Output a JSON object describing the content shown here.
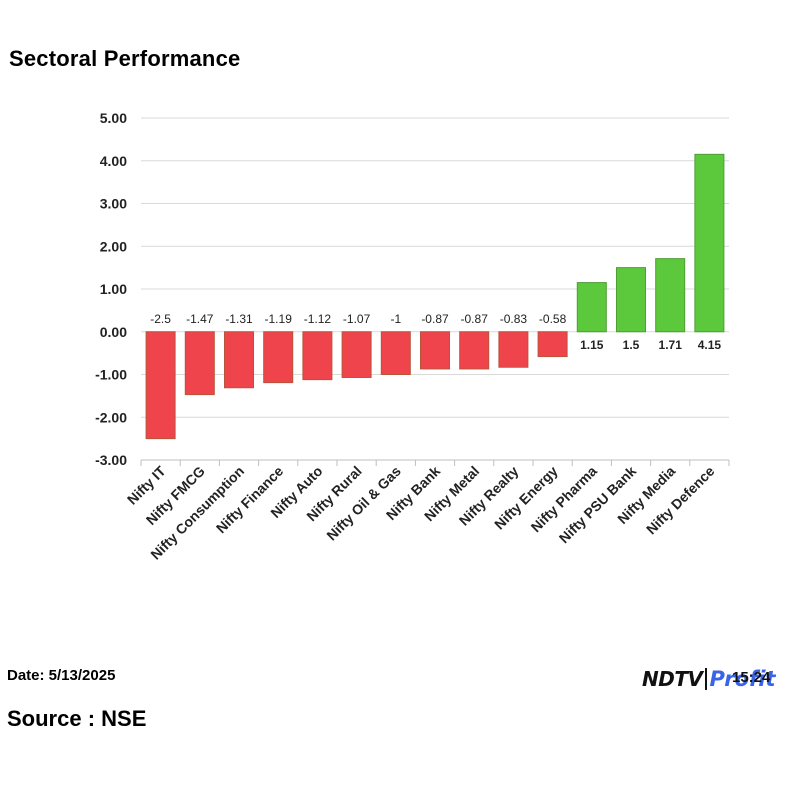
{
  "title": "Sectoral Performance",
  "footer": {
    "date": "Date: 5/13/2025",
    "source": "Source : NSE",
    "logo_ndtv": "NDTV",
    "logo_profit": "Profit",
    "time": "15:24"
  },
  "colors": {
    "negative": "#f0444c",
    "negative_edge": "#b8553a",
    "positive": "#5cc93c",
    "positive_edge": "#4f9e34",
    "grid": "#d9d9d9",
    "axis": "#bfbfbf"
  },
  "chart_data": {
    "type": "bar",
    "title": "Sectoral Performance",
    "xlabel": "",
    "ylabel": "",
    "ylim": [
      -3,
      5
    ],
    "yticks": [
      "-3.00",
      "-2.00",
      "-1.00",
      "0.00",
      "1.00",
      "2.00",
      "3.00",
      "4.00",
      "5.00"
    ],
    "grid": true,
    "categories": [
      "Nifty IT",
      "Nifty FMCG",
      "Nifty Consumption",
      "Nifty Finance",
      "Nifty Auto",
      "Nifty Rural",
      "Nifty Oil & Gas",
      "Nifty Bank",
      "Nifty Metal",
      "Nifty Realty",
      "Nifty Energy",
      "Nifty Pharma",
      "Nifty PSU Bank",
      "Nifty Media",
      "Nifty Defence"
    ],
    "values": [
      -2.5,
      -1.47,
      -1.31,
      -1.19,
      -1.12,
      -1.07,
      -1,
      -0.87,
      -0.87,
      -0.83,
      -0.58,
      1.15,
      1.5,
      1.71,
      4.15
    ],
    "data_labels": [
      "-2.5",
      "-1.47",
      "-1.31",
      "-1.19",
      "-1.12",
      "-1.07",
      "-1",
      "-0.87",
      "-0.87",
      "-0.83",
      "-0.58",
      "1.15",
      "1.5",
      "1.71",
      "4.15"
    ]
  }
}
